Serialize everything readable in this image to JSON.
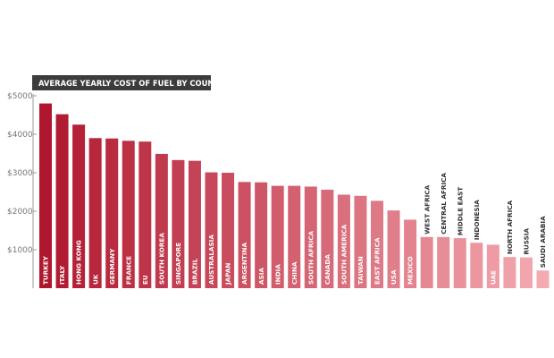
{
  "chart_data": {
    "type": "bar",
    "title": "AVERAGE YEARLY COST OF FUEL BY COUNTRY",
    "xlabel": "",
    "ylabel": "",
    "ylim": [
      0,
      5000
    ],
    "yticks": [
      1000,
      2000,
      3000,
      4000,
      5000
    ],
    "ytick_labels": [
      "$1000",
      "$2000",
      "$3000",
      "$4000",
      "$5000"
    ],
    "grid": false,
    "legend": "none",
    "label_placement": "vertical-inside-bar-bottom; above bar when bar is short",
    "color_gradient": [
      "#b0172e",
      "#f5aab2"
    ],
    "categories": [
      "TURKEY",
      "ITALY",
      "HONG KONG",
      "UK",
      "GERMANY",
      "FRANCE",
      "EU",
      "SOUTH KOREA",
      "SINGAPORE",
      "BRAZIL",
      "AUSTRALASIA",
      "JAPAN",
      "ARGENTINA",
      "ASIA",
      "INDIA",
      "CHINA",
      "SOUTH AFRICA",
      "CANADA",
      "SOUTH AMERICA",
      "TAIWAN",
      "EAST AFRICA",
      "USA",
      "MEXICO",
      "WEST AFRICA",
      "CENTRAL AFRICA",
      "MIDDLE EAST",
      "INDONESIA",
      "UAE",
      "NORTH AFRICA",
      "RUSSIA",
      "SAUDI ARABIA"
    ],
    "values": [
      4800,
      4520,
      4250,
      3900,
      3890,
      3830,
      3810,
      3490,
      3330,
      3310,
      3010,
      3000,
      2760,
      2750,
      2660,
      2660,
      2640,
      2560,
      2430,
      2400,
      2270,
      2020,
      1780,
      1330,
      1330,
      1300,
      1180,
      1130,
      810,
      800,
      460
    ]
  }
}
